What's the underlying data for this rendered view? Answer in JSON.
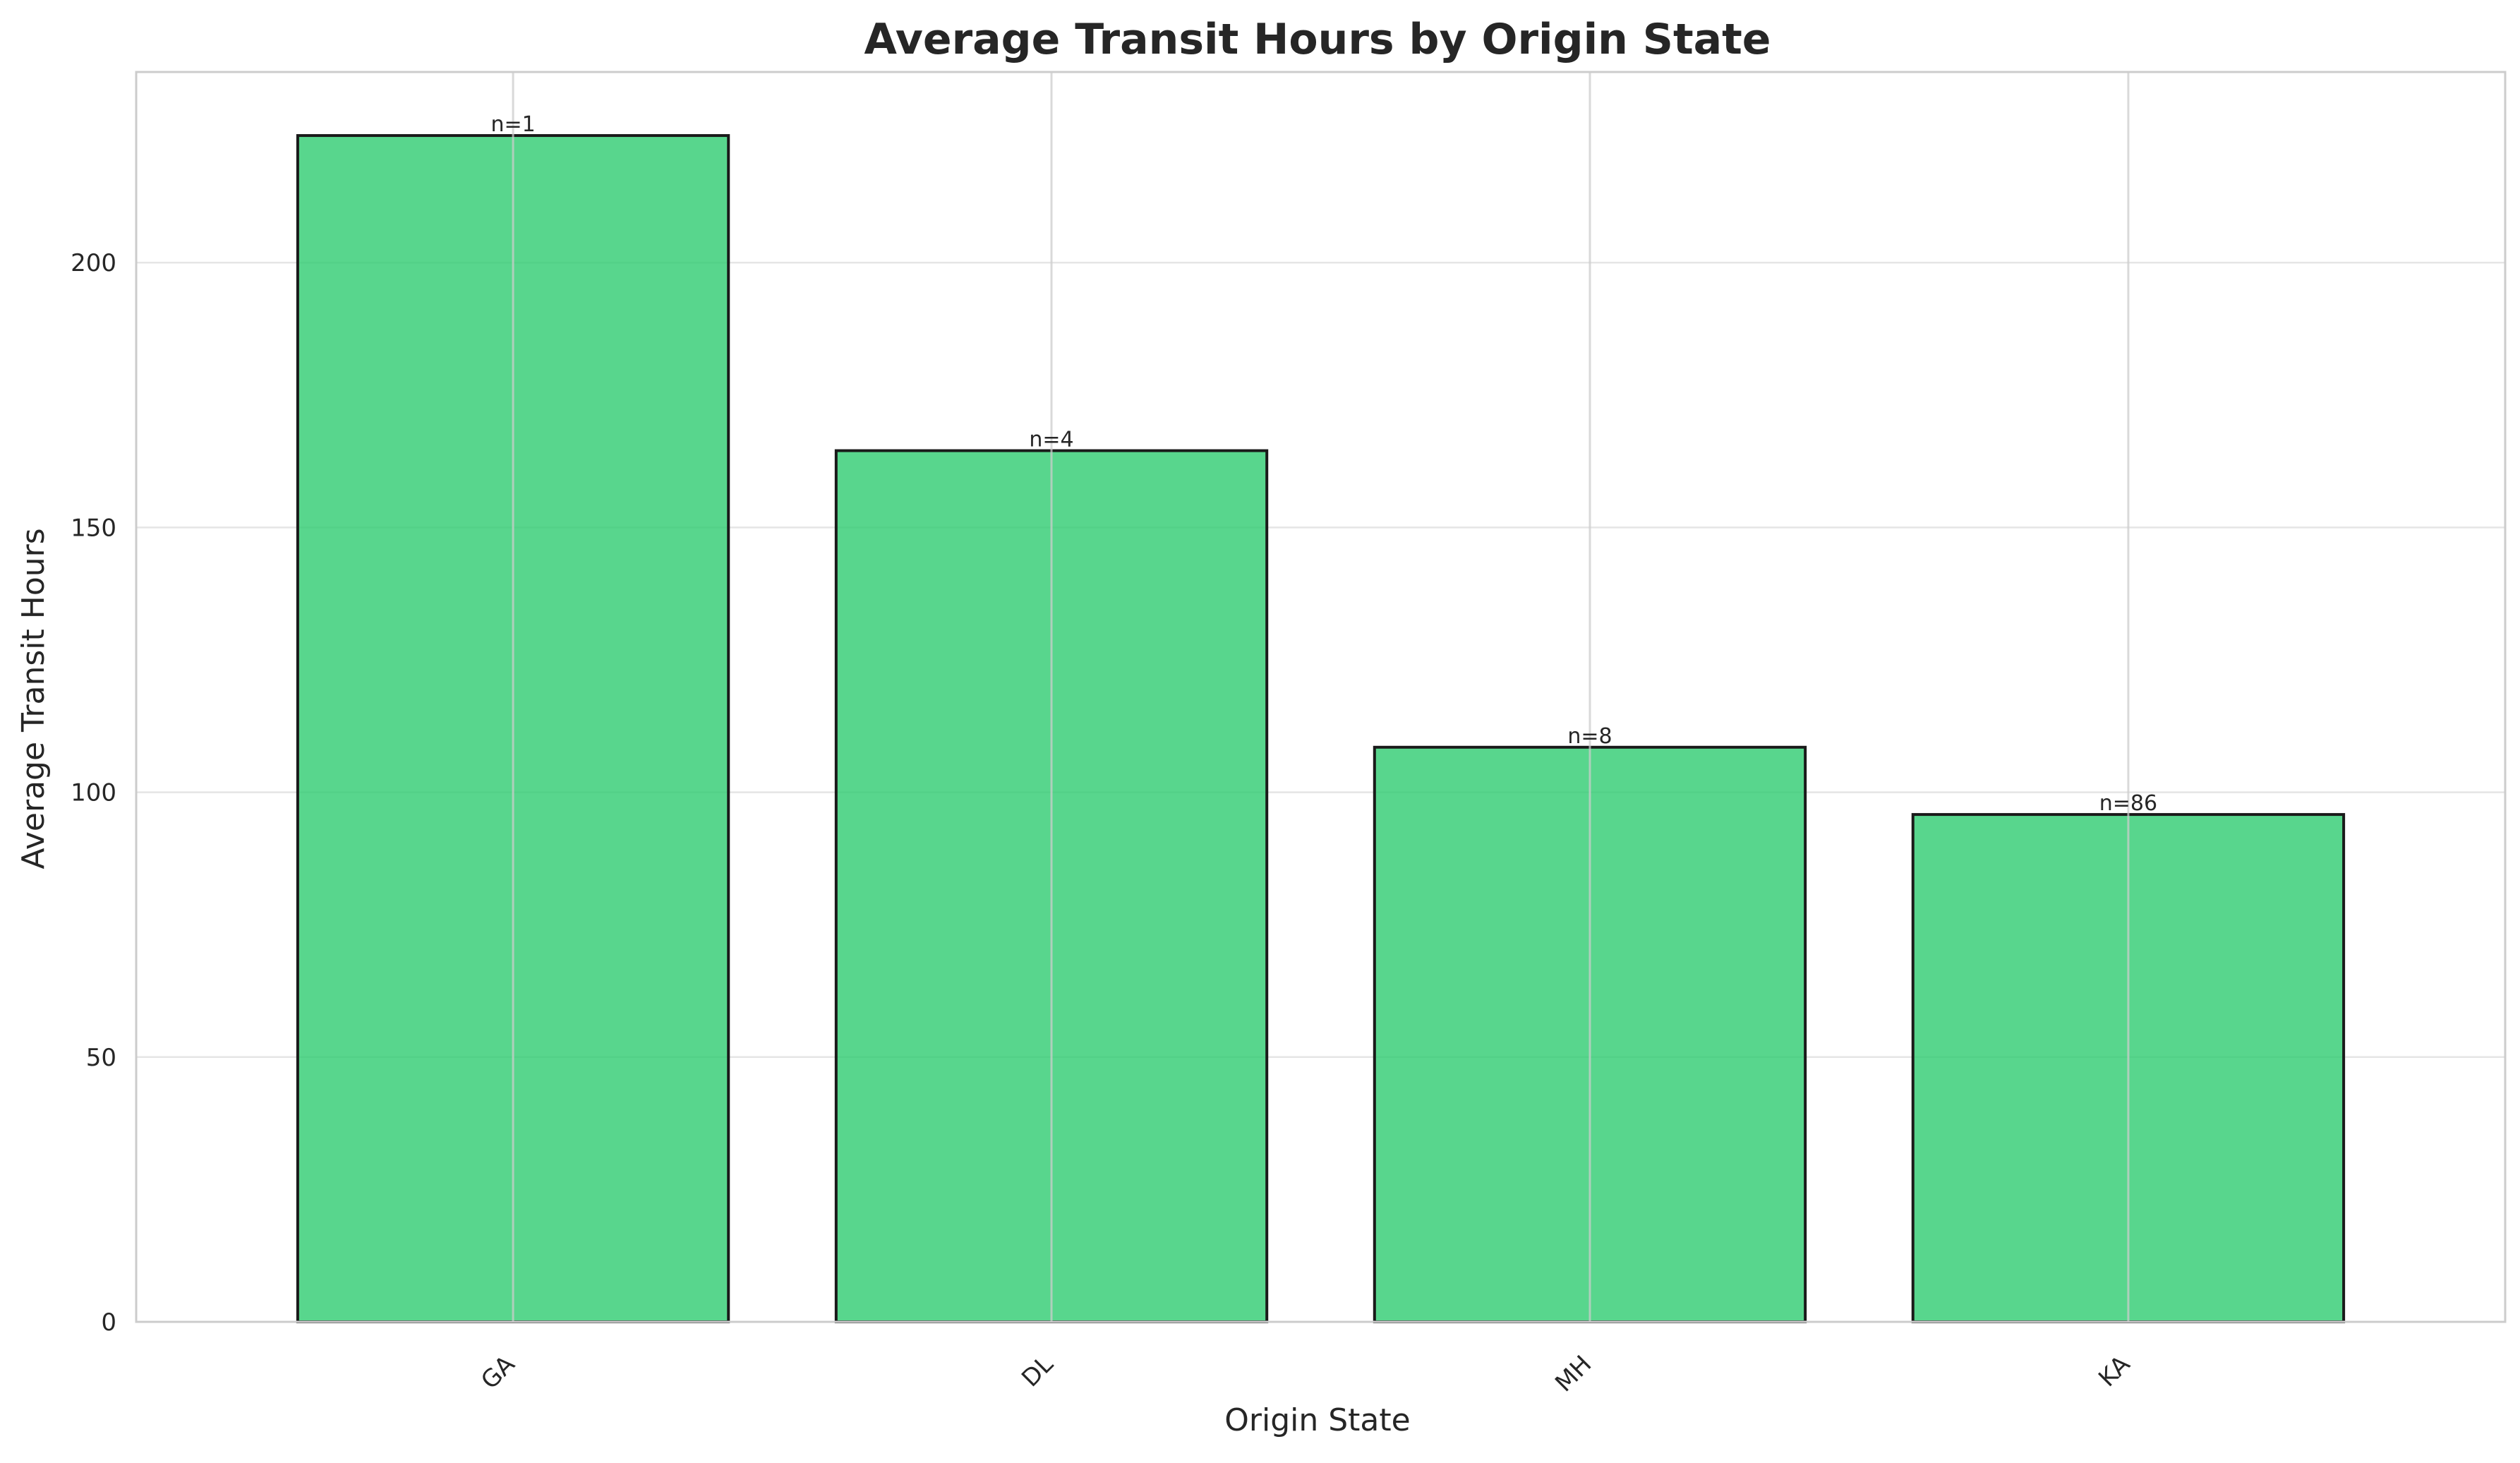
{
  "chart_data": {
    "type": "bar",
    "title": "Average Transit Hours by Origin State",
    "xlabel": "Origin State",
    "ylabel": "Average Transit Hours",
    "categories": [
      "GA",
      "DL",
      "MH",
      "KA"
    ],
    "values": [
      224,
      164.5,
      108.5,
      95.8
    ],
    "data_labels": [
      "n=1",
      "n=4",
      "n=8",
      "n=86"
    ],
    "ylim": [
      0,
      236
    ],
    "yticks": [
      0,
      50,
      100,
      150,
      200
    ],
    "grid": true,
    "legend": "none",
    "colors": {
      "bar_fill": "#2ecc71",
      "bar_edge": "#1a1a1a",
      "grid": "#e5e5e5",
      "vgrid": "#cccccc",
      "axes_edge": "#cccccc",
      "text": "#262626"
    }
  }
}
